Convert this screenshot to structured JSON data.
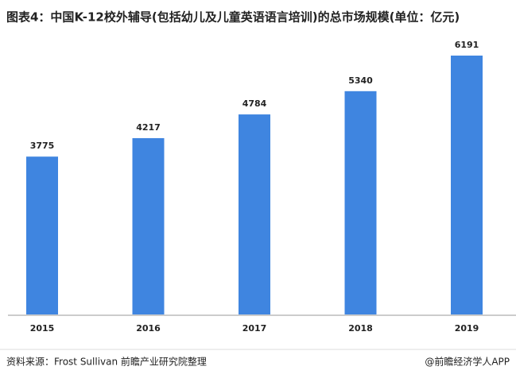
{
  "chart_data": {
    "type": "bar",
    "title": "图表4：中国K-12校外辅导(包括幼儿及儿童英语语言培训)的总市场规模(单位：亿元)",
    "categories": [
      "2015",
      "2016",
      "2017",
      "2018",
      "2019"
    ],
    "values": [
      3775,
      4217,
      4784,
      5340,
      6191
    ],
    "color": "#3f85e0",
    "source": "资料来源：Frost Sullivan 前瞻产业研究院整理",
    "brand": "@前瞻经济学人APP"
  }
}
